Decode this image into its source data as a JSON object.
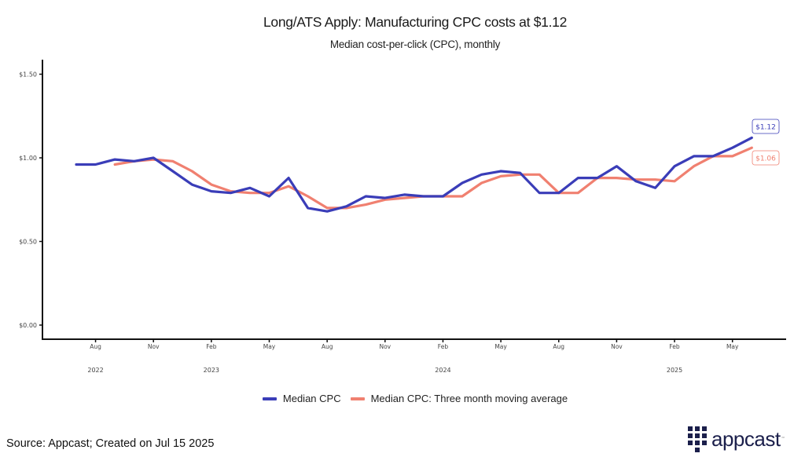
{
  "chart_data": {
    "type": "line",
    "title": "Long/ATS Apply: Manufacturing CPC costs at $1.12",
    "subtitle": "Median cost-per-click (CPC), monthly",
    "xlabel": "",
    "ylabel": "",
    "ylim": [
      0,
      1.5
    ],
    "y_ticks": [
      {
        "value": 0.0,
        "label": "$0.00"
      },
      {
        "value": 0.5,
        "label": "$0.50"
      },
      {
        "value": 1.0,
        "label": "$1.00"
      },
      {
        "value": 1.5,
        "label": "$1.50"
      }
    ],
    "x_start": "2022-07",
    "x_end": "2025-06",
    "x_ticks": [
      {
        "month": "2022-08",
        "label": "Aug"
      },
      {
        "month": "2022-11",
        "label": "Nov"
      },
      {
        "month": "2023-02",
        "label": "Feb"
      },
      {
        "month": "2023-05",
        "label": "May"
      },
      {
        "month": "2023-08",
        "label": "Aug"
      },
      {
        "month": "2023-11",
        "label": "Nov"
      },
      {
        "month": "2024-02",
        "label": "Feb"
      },
      {
        "month": "2024-05",
        "label": "May"
      },
      {
        "month": "2024-08",
        "label": "Aug"
      },
      {
        "month": "2024-11",
        "label": "Nov"
      },
      {
        "month": "2025-02",
        "label": "Feb"
      },
      {
        "month": "2025-05",
        "label": "May"
      }
    ],
    "year_labels": [
      {
        "month": "2022-08",
        "label": "2022"
      },
      {
        "month": "2023-02",
        "label": "2023"
      },
      {
        "month": "2024-02",
        "label": "2024"
      },
      {
        "month": "2025-02",
        "label": "2025"
      }
    ],
    "grid": false,
    "legend_position": "bottom",
    "series": [
      {
        "name": "Median CPC",
        "color": "#3a3db8",
        "start": "2022-07",
        "values": [
          0.96,
          0.96,
          0.99,
          0.98,
          1.0,
          0.92,
          0.84,
          0.8,
          0.79,
          0.82,
          0.77,
          0.88,
          0.7,
          0.68,
          0.71,
          0.77,
          0.76,
          0.78,
          0.77,
          0.77,
          0.85,
          0.9,
          0.92,
          0.91,
          0.79,
          0.79,
          0.88,
          0.88,
          0.95,
          0.86,
          0.82,
          0.95,
          1.01,
          1.01,
          1.06,
          1.12
        ],
        "end_label": "$1.12"
      },
      {
        "name": "Median CPC: Three month moving average",
        "color": "#f08070",
        "start": "2022-09",
        "values": [
          0.96,
          0.98,
          0.99,
          0.98,
          0.92,
          0.84,
          0.8,
          0.79,
          0.79,
          0.83,
          0.77,
          0.7,
          0.7,
          0.72,
          0.75,
          0.76,
          0.77,
          0.77,
          0.77,
          0.85,
          0.89,
          0.9,
          0.9,
          0.79,
          0.79,
          0.88,
          0.88,
          0.87,
          0.87,
          0.86,
          0.95,
          1.01,
          1.01,
          1.06
        ],
        "end_label": "$1.06"
      }
    ]
  },
  "legend": {
    "items": [
      {
        "label": "Median CPC",
        "color": "#3a3db8"
      },
      {
        "label": "Median CPC: Three month moving average",
        "color": "#f08070"
      }
    ]
  },
  "footer": {
    "source": "Source: Appcast; Created on Jul 15 2025",
    "logo_text": "appcast",
    "logo_tm": "™"
  }
}
